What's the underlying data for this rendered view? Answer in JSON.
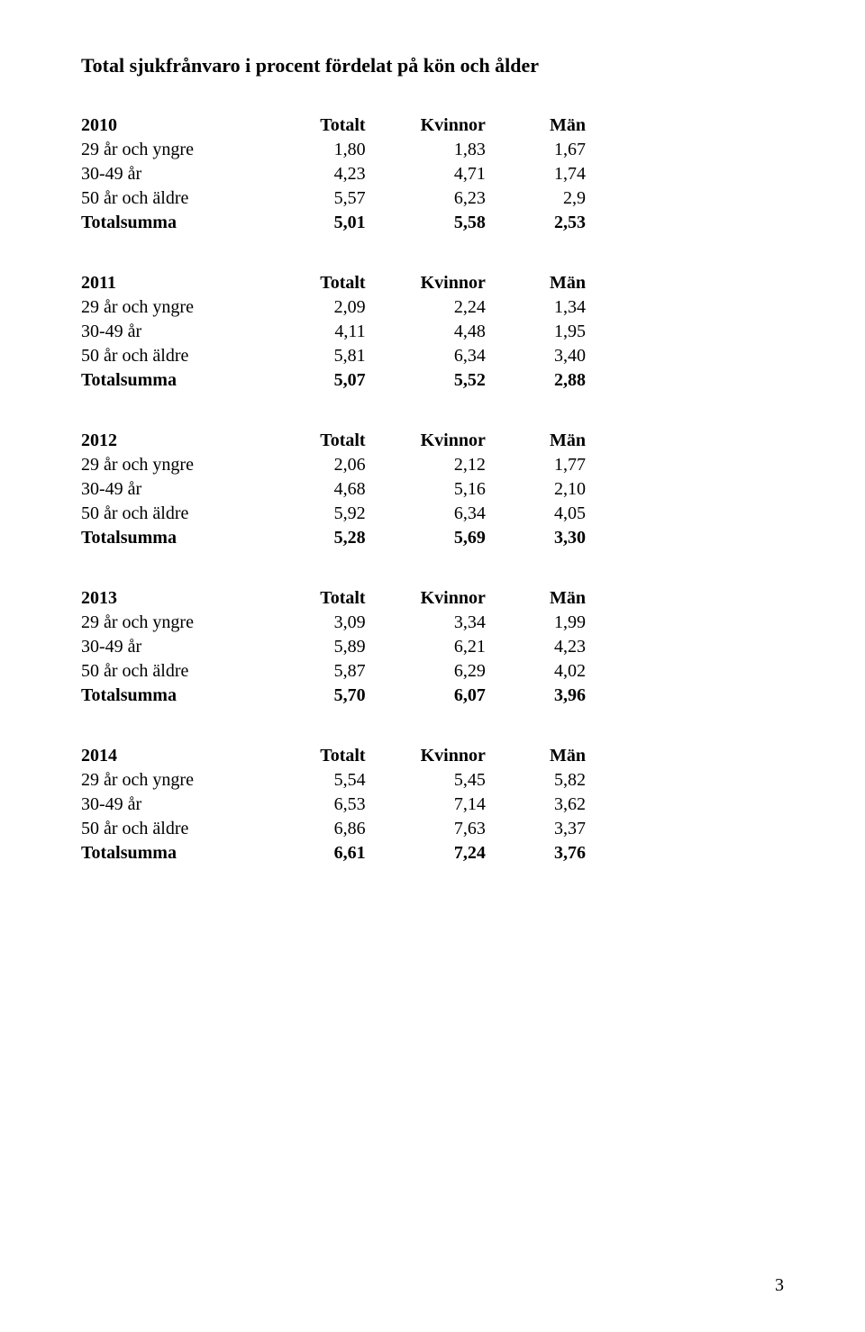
{
  "title": "Total sjukfrånvaro i procent fördelat på kön och ålder",
  "columns": {
    "c1": "Totalt",
    "c2": "Kvinnor",
    "c3": "Män"
  },
  "row_labels": {
    "r1": "29 år och yngre",
    "r2": "30-49 år",
    "r3": "50 år och äldre",
    "total": "Totalsumma"
  },
  "tables": {
    "t2010": {
      "year": "2010",
      "rows": {
        "r1": [
          "1,80",
          "1,83",
          "1,67"
        ],
        "r2": [
          "4,23",
          "4,71",
          "1,74"
        ],
        "r3": [
          "5,57",
          "6,23",
          "2,9"
        ],
        "total": [
          "5,01",
          "5,58",
          "2,53"
        ]
      }
    },
    "t2011": {
      "year": "2011",
      "rows": {
        "r1": [
          "2,09",
          "2,24",
          "1,34"
        ],
        "r2": [
          "4,11",
          "4,48",
          "1,95"
        ],
        "r3": [
          "5,81",
          "6,34",
          "3,40"
        ],
        "total": [
          "5,07",
          "5,52",
          "2,88"
        ]
      }
    },
    "t2012": {
      "year": "2012",
      "rows": {
        "r1": [
          "2,06",
          "2,12",
          "1,77"
        ],
        "r2": [
          "4,68",
          "5,16",
          "2,10"
        ],
        "r3": [
          "5,92",
          "6,34",
          "4,05"
        ],
        "total": [
          "5,28",
          "5,69",
          "3,30"
        ]
      }
    },
    "t2013": {
      "year": "2013",
      "rows": {
        "r1": [
          "3,09",
          "3,34",
          "1,99"
        ],
        "r2": [
          "5,89",
          "6,21",
          "4,23"
        ],
        "r3": [
          "5,87",
          "6,29",
          "4,02"
        ],
        "total": [
          "5,70",
          "6,07",
          "3,96"
        ]
      }
    },
    "t2014": {
      "year": "2014",
      "rows": {
        "r1": [
          "5,54",
          "5,45",
          "5,82"
        ],
        "r2": [
          "6,53",
          "7,14",
          "3,62"
        ],
        "r3": [
          "6,86",
          "7,63",
          "3,37"
        ],
        "total": [
          "6,61",
          "7,24",
          "3,76"
        ]
      }
    }
  },
  "page_number": "3"
}
